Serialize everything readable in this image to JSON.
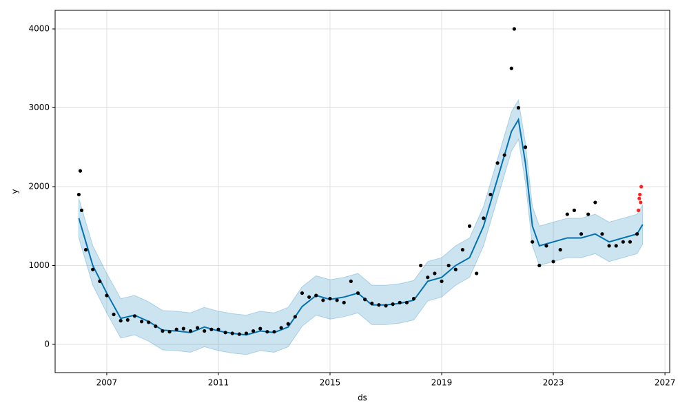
{
  "chart_data": {
    "type": "forecast",
    "x_label": "ds",
    "y_label": "y",
    "xlim": [
      2005.15,
      2027.17
    ],
    "xticks": [
      2007,
      2011,
      2015,
      2019,
      2023,
      2027
    ],
    "ylim": [
      -358,
      4236
    ],
    "yticks": [
      0,
      1000,
      2000,
      3000,
      4000
    ],
    "grid": true,
    "actual": {
      "color": "#000000",
      "x": [
        2006.0,
        2006.05,
        2006.1,
        2006.25,
        2006.5,
        2006.75,
        2007.0,
        2007.25,
        2007.5,
        2007.75,
        2008.0,
        2008.25,
        2008.5,
        2008.75,
        2009.0,
        2009.25,
        2009.5,
        2009.75,
        2010.0,
        2010.25,
        2010.5,
        2010.75,
        2011.0,
        2011.25,
        2011.5,
        2011.75,
        2012.0,
        2012.25,
        2012.5,
        2012.75,
        2013.0,
        2013.25,
        2013.5,
        2013.75,
        2014.0,
        2014.25,
        2014.5,
        2014.75,
        2015.0,
        2015.25,
        2015.5,
        2015.75,
        2016.0,
        2016.25,
        2016.5,
        2016.75,
        2017.0,
        2017.25,
        2017.5,
        2017.75,
        2018.0,
        2018.25,
        2018.5,
        2018.75,
        2019.0,
        2019.25,
        2019.5,
        2019.75,
        2020.0,
        2020.25,
        2020.5,
        2020.75,
        2021.0,
        2021.25,
        2021.5,
        2021.6,
        2021.75,
        2022.0,
        2022.25,
        2022.5,
        2022.75,
        2023.0,
        2023.25,
        2023.5,
        2023.75,
        2024.0,
        2024.25,
        2024.5,
        2024.75,
        2025.0,
        2025.25,
        2025.5,
        2025.75,
        2026.0
      ],
      "values": [
        1900,
        2200,
        1700,
        1200,
        950,
        800,
        620,
        380,
        300,
        310,
        360,
        290,
        280,
        230,
        170,
        160,
        190,
        200,
        170,
        210,
        170,
        190,
        190,
        150,
        140,
        130,
        140,
        170,
        200,
        160,
        160,
        210,
        260,
        350,
        650,
        600,
        620,
        560,
        580,
        560,
        530,
        800,
        650,
        570,
        520,
        500,
        490,
        510,
        530,
        530,
        580,
        1000,
        850,
        900,
        800,
        1000,
        950,
        1200,
        1500,
        900,
        1600,
        1900,
        2300,
        2400,
        3500,
        4000,
        3000,
        2500,
        1300,
        1000,
        1250,
        1050,
        1200,
        1650,
        1700,
        1400,
        1650,
        1800,
        1400,
        1250,
        1250,
        1300,
        1300,
        1400
      ]
    },
    "test": {
      "color": "#ff2020",
      "x": [
        2026.05,
        2026.08,
        2026.1,
        2026.13,
        2026.15
      ],
      "values": [
        1700,
        1850,
        1900,
        1800,
        2000
      ]
    },
    "forecast": {
      "color": "#0072b2",
      "band_color": "#0072b2",
      "x": [
        2006.0,
        2006.5,
        2007.0,
        2007.5,
        2008.0,
        2008.5,
        2009.0,
        2009.5,
        2010.0,
        2010.5,
        2011.0,
        2011.5,
        2012.0,
        2012.5,
        2013.0,
        2013.5,
        2014.0,
        2014.5,
        2015.0,
        2015.5,
        2016.0,
        2016.5,
        2017.0,
        2017.5,
        2018.0,
        2018.5,
        2019.0,
        2019.5,
        2020.0,
        2020.5,
        2021.0,
        2021.5,
        2021.75,
        2022.0,
        2022.25,
        2022.5,
        2023.0,
        2023.5,
        2024.0,
        2024.5,
        2025.0,
        2025.5,
        2026.0,
        2026.2
      ],
      "values": [
        1600,
        1000,
        650,
        330,
        370,
        290,
        180,
        170,
        150,
        220,
        170,
        140,
        120,
        170,
        150,
        220,
        480,
        620,
        570,
        600,
        650,
        500,
        500,
        520,
        560,
        800,
        850,
        1000,
        1100,
        1500,
        2100,
        2700,
        2850,
        2300,
        1500,
        1250,
        1300,
        1350,
        1350,
        1400,
        1300,
        1350,
        1400,
        1520
      ],
      "lower": [
        1350,
        750,
        400,
        80,
        120,
        40,
        -70,
        -80,
        -100,
        -30,
        -80,
        -110,
        -130,
        -80,
        -100,
        -30,
        230,
        370,
        320,
        350,
        400,
        250,
        250,
        270,
        310,
        550,
        600,
        750,
        850,
        1250,
        1850,
        2450,
        2600,
        2050,
        1250,
        1000,
        1050,
        1100,
        1100,
        1150,
        1050,
        1100,
        1150,
        1270
      ],
      "upper": [
        1850,
        1250,
        900,
        580,
        620,
        540,
        430,
        420,
        400,
        470,
        420,
        390,
        370,
        420,
        400,
        470,
        730,
        870,
        820,
        850,
        900,
        750,
        750,
        770,
        810,
        1050,
        1100,
        1250,
        1350,
        1750,
        2350,
        2950,
        3100,
        2550,
        1750,
        1500,
        1550,
        1600,
        1600,
        1650,
        1550,
        1600,
        1650,
        1770
      ]
    }
  }
}
